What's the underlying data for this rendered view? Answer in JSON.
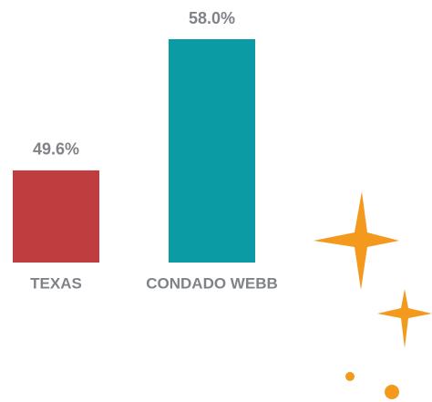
{
  "chart_data": {
    "type": "bar",
    "categories": [
      "TEXAS",
      "CONDADO WEBB"
    ],
    "values": [
      49.6,
      58.0
    ],
    "value_labels": [
      "49.6%",
      "58.0%"
    ],
    "colors": [
      "#bf3c3f",
      "#0a9ba5"
    ],
    "ylim": [
      43.7,
      58
    ]
  }
}
